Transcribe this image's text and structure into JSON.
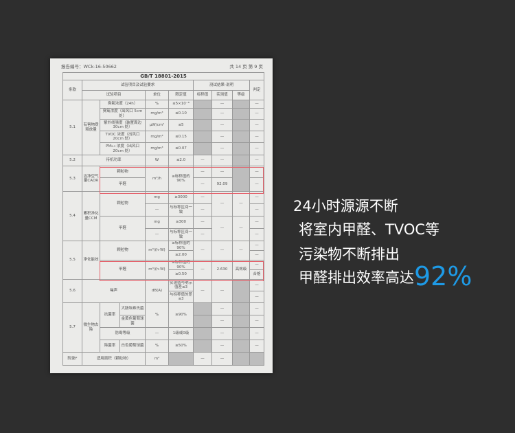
{
  "document": {
    "report_no": "报告编号：WCk-16-50662",
    "page_info": "共 14 页  第 9 页",
    "standard": "GB/T 18801-2015",
    "rows": [
      [
        "条款",
        "试验项目及试验要求",
        "测试结果-说明",
        "判定"
      ],
      [
        "试验项目",
        "单位",
        "限定值",
        "标称值",
        "实测值",
        "等级"
      ],
      [
        "5.1",
        "有害物质释放量",
        "臭氧浓度（24h）",
        "%",
        "≤5×10⁻⁶",
        "—",
        "—"
      ],
      [
        "臭氧浓度（出风口 5cm 处）",
        "mg/m³",
        "≤0.10",
        "—",
        "—"
      ],
      [
        "紫外线强度（装置周边 30cm 处）",
        "μW/cm²",
        "≤5",
        "—",
        "—"
      ],
      [
        "TVOC 浓度（出风口 20cm 处）",
        "mg/m³",
        "≤0.15",
        "—",
        "—"
      ],
      [
        "PM₂.₅ 浓度（出风口 20cm 处）",
        "mg/m³",
        "≤0.07",
        "—",
        "—"
      ],
      [
        "5.2",
        "待机功率",
        "W",
        "≤2.0",
        "—",
        "—",
        "—"
      ],
      [
        "5.3",
        "洁净空气量CADR",
        "颗粒物",
        "m³/h",
        "≥标称值的90%",
        "—",
        "—",
        "—"
      ],
      [
        "甲醛",
        "—",
        "92.09",
        "—"
      ],
      [
        "5.4",
        "累积净化量CCM",
        "颗粒物",
        "mg",
        "≥3000",
        "—",
        "—",
        "—",
        "—"
      ],
      [
        "—",
        "与标称区间一致",
        "—",
        "—"
      ],
      [
        "甲醛",
        "mg",
        "≥300",
        "—",
        "—",
        "—",
        "—"
      ],
      [
        "—",
        "与标称区间一致",
        "—",
        "—"
      ],
      [
        "5.5",
        "净化能效",
        "颗粒物",
        "m³/(h·W)",
        "≥标称值的90%",
        "—",
        "—",
        "—",
        "—"
      ],
      [
        "≥2.00",
        "—"
      ],
      [
        "甲醛",
        "m³/(h·W)",
        "≥标称值的90%",
        "—",
        "2.630",
        "高效级",
        "—"
      ],
      [
        "≥0.50",
        "合格"
      ],
      [
        "5.6",
        "噪声",
        "dB(A)",
        "实测值与明示值差≤3",
        "—",
        "—",
        "—"
      ],
      [
        "与标称值的差≤3",
        "—"
      ],
      [
        "5.7",
        "微生物去除",
        "抗菌率",
        "大肠埃希氏菌",
        "%",
        "≥90%",
        "—",
        "—"
      ],
      [
        "金黄色葡萄球菌",
        "—",
        "—"
      ],
      [
        "防霉等级",
        "—",
        "1级或0级",
        "—",
        "—"
      ],
      [
        "除菌率",
        "白色葡萄球菌",
        "%",
        "≥50%",
        "—",
        "—"
      ],
      [
        "附录F",
        "适用面积（颗粒物）",
        "m²",
        "—",
        "—"
      ]
    ]
  },
  "promo": {
    "line1": "24小时源源不断",
    "line2": "将室内甲醛、TVOC等",
    "line3": "污染物不断排出",
    "line4": "甲醛排出效率高达",
    "highlight": "92%",
    "highlight_color": "#1e9ae6"
  }
}
